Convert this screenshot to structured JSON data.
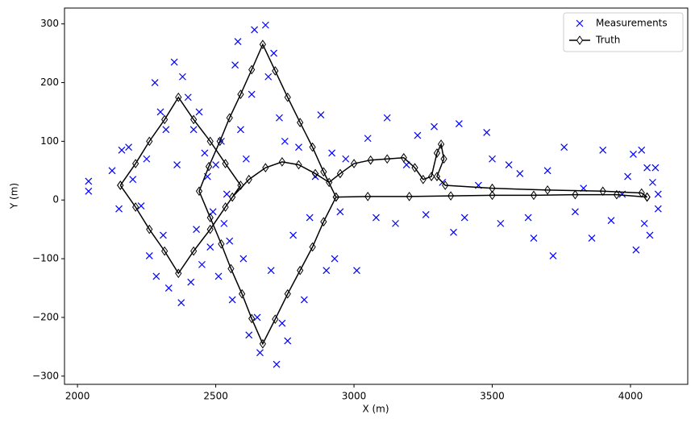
{
  "chart_data": {
    "type": "scatter_line",
    "xlabel": "X (m)",
    "ylabel": "Y (m)",
    "xlim": [
      1953,
      4207
    ],
    "ylim": [
      -314,
      327
    ],
    "xticks": [
      2000,
      2500,
      3000,
      3500,
      4000
    ],
    "yticks": [
      {
        "value": -300,
        "label": "−300"
      },
      {
        "value": -200,
        "label": "−200"
      },
      {
        "value": -100,
        "label": "−100"
      },
      0,
      100,
      200,
      300
    ],
    "legend": "upper right",
    "series": [
      {
        "name": "Measurements",
        "color": "#0000ff",
        "style": "marker-x",
        "x": [
          2040,
          2040,
          2125,
          2150,
          2160,
          2185,
          2200,
          2230,
          2250,
          2260,
          2280,
          2285,
          2300,
          2310,
          2320,
          2330,
          2350,
          2360,
          2375,
          2380,
          2400,
          2410,
          2420,
          2430,
          2440,
          2450,
          2460,
          2470,
          2480,
          2490,
          2500,
          2510,
          2520,
          2530,
          2540,
          2550,
          2560,
          2570,
          2580,
          2590,
          2600,
          2610,
          2620,
          2630,
          2640,
          2650,
          2660,
          2680,
          2690,
          2700,
          2710,
          2720,
          2730,
          2740,
          2750,
          2760,
          2780,
          2800,
          2820,
          2840,
          2860,
          2880,
          2900,
          2920,
          2930,
          2950,
          2970,
          3010,
          3050,
          3080,
          3120,
          3150,
          3190,
          3230,
          3260,
          3290,
          3320,
          3360,
          3380,
          3400,
          3450,
          3480,
          3500,
          3530,
          3560,
          3600,
          3630,
          3650,
          3700,
          3720,
          3760,
          3800,
          3830,
          3860,
          3900,
          3930,
          3970,
          3990,
          4010,
          4020,
          4040,
          4050,
          4060,
          4070,
          4080,
          4090,
          4100,
          4100
        ],
        "values": [
          32,
          15,
          50,
          -15,
          85,
          90,
          35,
          -10,
          70,
          -95,
          200,
          -130,
          150,
          -60,
          120,
          -150,
          235,
          60,
          -175,
          210,
          175,
          -140,
          120,
          -50,
          150,
          -110,
          80,
          40,
          -80,
          -20,
          60,
          -130,
          100,
          -40,
          10,
          -70,
          -170,
          230,
          270,
          120,
          -100,
          70,
          -230,
          180,
          290,
          -200,
          -260,
          298,
          210,
          -120,
          250,
          -280,
          140,
          -210,
          100,
          -240,
          -60,
          90,
          -170,
          -30,
          40,
          145,
          -120,
          80,
          -100,
          -20,
          70,
          -120,
          105,
          -30,
          140,
          -40,
          60,
          110,
          -25,
          125,
          30,
          -55,
          130,
          -30,
          25,
          115,
          70,
          -40,
          60,
          45,
          -30,
          -65,
          50,
          -95,
          90,
          -20,
          20,
          -65,
          85,
          -35,
          10,
          40,
          78,
          -85,
          85,
          -40,
          55,
          -60,
          30,
          55,
          -15,
          10
        ]
      },
      {
        "name": "Truth",
        "color": "#000000",
        "style": "line-diamond",
        "x": [
          2155,
          2210,
          2260,
          2315,
          2365,
          2420,
          2480,
          2535,
          2590,
          2535,
          2480,
          2420,
          2365,
          2315,
          2260,
          2210,
          2155,
          null,
          2935,
          2890,
          2850,
          2805,
          2760,
          2715,
          2670,
          2630,
          2590,
          2550,
          2515,
          2475,
          2440,
          2480,
          2520,
          2555,
          2595,
          2630,
          2670,
          2715,
          2760,
          2805,
          2850,
          2890,
          2935,
          3050,
          3200,
          3350,
          3500,
          3650,
          3800,
          3950,
          4060,
          null,
          2560,
          2620,
          2680,
          2740,
          2800,
          2860,
          2910,
          2950,
          3000,
          3060,
          3120,
          3180,
          3220,
          3250,
          3280,
          3300,
          3315,
          3325,
          3300,
          3330,
          3500,
          3700,
          3900,
          4040,
          4060
        ],
        "values": [
          25,
          62,
          100,
          137,
          175,
          137,
          100,
          62,
          25,
          -12,
          -50,
          -87,
          -125,
          -87,
          -50,
          -12,
          25,
          null,
          5,
          48,
          90,
          132,
          175,
          220,
          265,
          222,
          180,
          140,
          100,
          57,
          15,
          -30,
          -75,
          -117,
          -160,
          -202,
          -245,
          -203,
          -160,
          -120,
          -80,
          -37,
          5,
          6,
          6,
          7,
          8,
          8,
          9,
          9,
          5,
          null,
          5,
          35,
          55,
          65,
          60,
          45,
          30,
          45,
          62,
          68,
          70,
          72,
          55,
          35,
          40,
          80,
          95,
          70,
          40,
          25,
          20,
          17,
          15,
          12,
          5
        ]
      }
    ]
  }
}
